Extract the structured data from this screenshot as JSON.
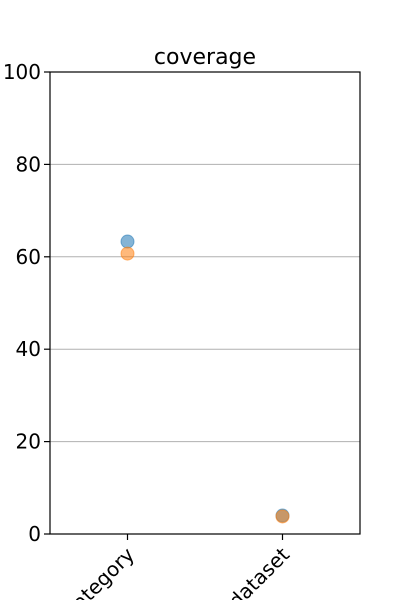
{
  "chart_data": {
    "type": "scatter",
    "title": "coverage",
    "xlabel": "",
    "ylabel": "",
    "categories": [
      "category",
      "dataset"
    ],
    "ylim": [
      0,
      100
    ],
    "yticks": [
      0,
      20,
      40,
      60,
      80,
      100
    ],
    "grid": "y",
    "series": [
      {
        "values": [
          63.3,
          4.0
        ],
        "color": "#1f77b4"
      },
      {
        "values": [
          60.7,
          3.8
        ],
        "color": "#ff7f0e"
      }
    ]
  }
}
